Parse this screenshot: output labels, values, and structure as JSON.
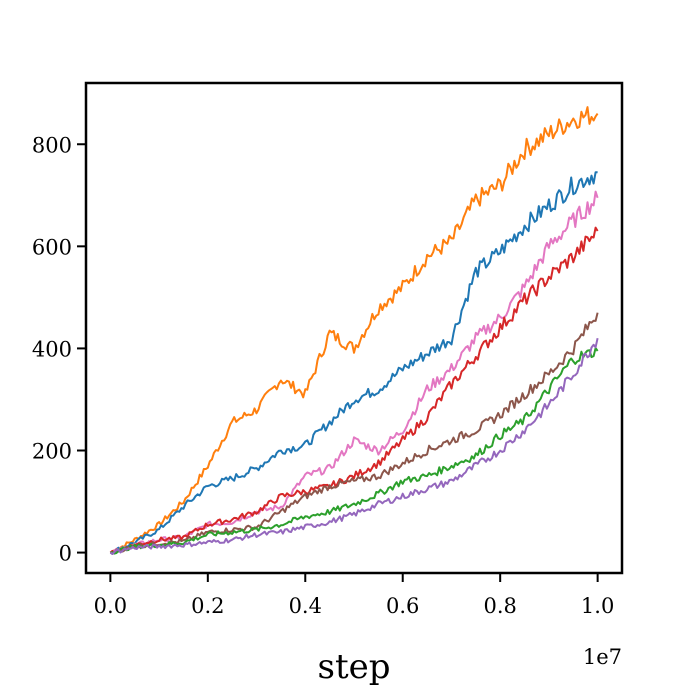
{
  "chart_data": {
    "type": "line",
    "title": "",
    "xlabel": "step",
    "ylabel": "",
    "x_offset_label": "1e7",
    "xlim": [
      -0.05,
      1.05
    ],
    "ylim": [
      -40,
      920
    ],
    "x_ticks": [
      0.0,
      0.2,
      0.4,
      0.6,
      0.8,
      1.0
    ],
    "x_tick_labels": [
      "0.0",
      "0.2",
      "0.4",
      "0.6",
      "0.8",
      "1.0"
    ],
    "y_ticks": [
      0,
      200,
      400,
      600,
      800
    ],
    "y_tick_labels": [
      "0",
      "200",
      "400",
      "600",
      "800"
    ],
    "grid": false,
    "legend": "none",
    "x": [
      0.0,
      0.05,
      0.1,
      0.15,
      0.2,
      0.25,
      0.3,
      0.35,
      0.4,
      0.45,
      0.5,
      0.55,
      0.6,
      0.65,
      0.7,
      0.75,
      0.8,
      0.85,
      0.9,
      0.95,
      1.0
    ],
    "series": [
      {
        "color": "#ff7f0e",
        "values": [
          0,
          25,
          55,
          100,
          170,
          255,
          280,
          340,
          310,
          430,
          400,
          480,
          520,
          580,
          610,
          690,
          720,
          790,
          820,
          850,
          860
        ]
      },
      {
        "color": "#1f77b4",
        "values": [
          0,
          20,
          45,
          90,
          130,
          145,
          165,
          200,
          210,
          255,
          300,
          320,
          360,
          390,
          420,
          550,
          590,
          640,
          680,
          720,
          745
        ]
      },
      {
        "color": "#e377c2",
        "values": [
          0,
          15,
          25,
          30,
          55,
          60,
          80,
          90,
          150,
          165,
          220,
          200,
          240,
          320,
          360,
          420,
          460,
          520,
          600,
          650,
          695
        ]
      },
      {
        "color": "#d62728",
        "values": [
          0,
          15,
          25,
          30,
          55,
          65,
          80,
          110,
          120,
          130,
          150,
          175,
          220,
          265,
          330,
          385,
          440,
          495,
          540,
          580,
          630
        ]
      },
      {
        "color": "#8c564b",
        "values": [
          0,
          12,
          18,
          22,
          40,
          45,
          50,
          80,
          110,
          130,
          140,
          150,
          175,
          200,
          220,
          240,
          270,
          310,
          350,
          400,
          470
        ]
      },
      {
        "color": "#2ca02c",
        "values": [
          0,
          12,
          15,
          20,
          35,
          40,
          45,
          55,
          70,
          80,
          95,
          115,
          140,
          150,
          170,
          190,
          230,
          260,
          320,
          380,
          395
        ]
      },
      {
        "color": "#9467bd",
        "values": [
          0,
          10,
          12,
          15,
          20,
          25,
          35,
          40,
          50,
          60,
          75,
          95,
          110,
          125,
          140,
          170,
          200,
          240,
          290,
          350,
          420
        ]
      }
    ]
  }
}
